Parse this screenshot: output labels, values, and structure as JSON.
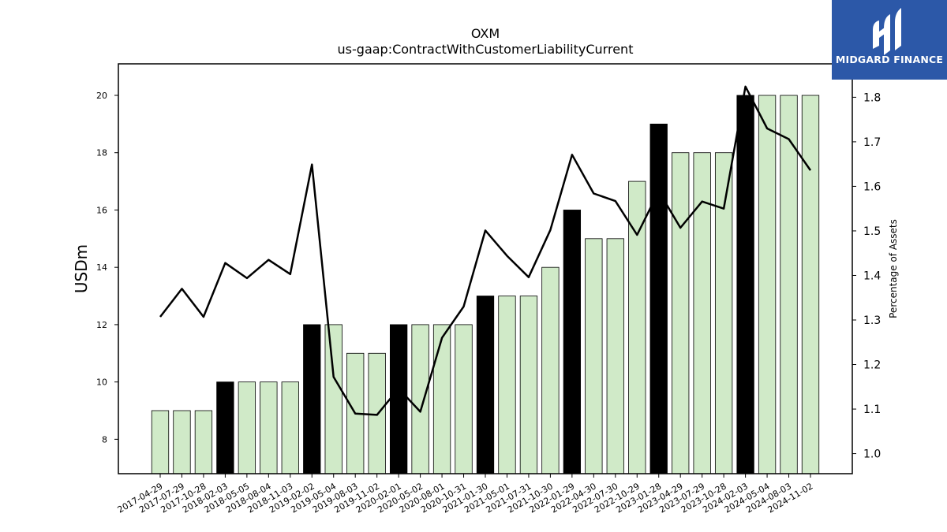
{
  "header": {
    "title": "OXM",
    "subtitle": "us-gaap:ContractWithCustomerLiabilityCurrent"
  },
  "brand": {
    "name": "MIDGARD FINANCE",
    "color": "#2c58a8",
    "icon": "midgard-m-logo-icon"
  },
  "chart_data": {
    "type": "bar",
    "title": "OXM",
    "subtitle": "us-gaap:ContractWithCustomerLiabilityCurrent",
    "ylabel": "USDm",
    "y2label": "Percentage of Assets",
    "categories": [
      "2017-04-29",
      "2017-07-29",
      "2017-10-28",
      "2018-02-03",
      "2018-05-05",
      "2018-08-04",
      "2018-11-03",
      "2019-02-02",
      "2019-05-04",
      "2019-08-03",
      "2019-11-02",
      "2020-02-01",
      "2020-05-02",
      "2020-08-01",
      "2020-10-31",
      "2021-01-30",
      "2021-05-01",
      "2021-07-31",
      "2021-10-30",
      "2022-01-29",
      "2022-04-30",
      "2022-07-30",
      "2022-10-29",
      "2023-01-28",
      "2023-04-29",
      "2023-07-29",
      "2023-10-28",
      "2024-02-03",
      "2024-05-04",
      "2024-08-03",
      "2024-11-02"
    ],
    "series": [
      {
        "kind": "bar",
        "axis": "left",
        "values": [
          9,
          9,
          9,
          10,
          10,
          10,
          10,
          12,
          12,
          11,
          11,
          12,
          12,
          12,
          12,
          13,
          13,
          13,
          14,
          16,
          15,
          15,
          17,
          19,
          18,
          18,
          18,
          20,
          20,
          20,
          20
        ],
        "highlight": [
          false,
          false,
          false,
          true,
          false,
          false,
          false,
          true,
          false,
          false,
          false,
          true,
          false,
          false,
          false,
          true,
          false,
          false,
          false,
          true,
          false,
          false,
          false,
          true,
          false,
          false,
          false,
          true,
          false,
          false,
          false
        ],
        "color": "#d0eac8",
        "highlight_color": "#000000"
      },
      {
        "kind": "line",
        "axis": "right",
        "color": "#000000",
        "values": [
          1.307,
          1.37,
          1.307,
          1.428,
          1.394,
          1.435,
          1.403,
          1.649,
          1.172,
          1.09,
          1.087,
          1.146,
          1.094,
          1.26,
          1.33,
          1.501,
          1.444,
          1.396,
          1.502,
          1.671,
          1.584,
          1.567,
          1.491,
          1.589,
          1.507,
          1.566,
          1.55,
          1.824,
          1.73,
          1.706,
          1.636
        ]
      }
    ],
    "ylim": [
      6.8,
      21.1
    ],
    "y2lim": [
      0.955,
      1.875
    ],
    "yticks": [
      8,
      10,
      12,
      14,
      16,
      18,
      20
    ],
    "y2ticks": [
      "1.0",
      "1.1",
      "1.2",
      "1.3",
      "1.4",
      "1.5",
      "1.6",
      "1.7",
      "1.8"
    ],
    "grid": false,
    "legend": "none"
  }
}
